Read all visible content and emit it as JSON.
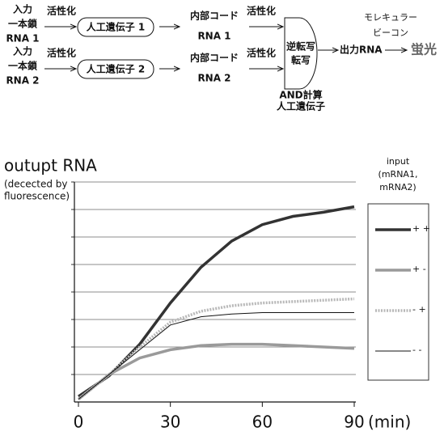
{
  "diagram": {
    "rows": [
      {
        "input": [
          "入力",
          "一本鎖",
          "RNA 1"
        ],
        "activate1": "活性化",
        "gene": "人工遺伝子 1",
        "code": [
          "内部コード",
          "RNA 1"
        ],
        "activate2": "活性化"
      },
      {
        "input": [
          "入力",
          "一本鎖",
          "RNA 2"
        ],
        "activate1": "活性化",
        "gene": "人工遺伝子 2",
        "code": [
          "内部コード",
          "RNA 2"
        ],
        "activate2": "活性化"
      }
    ],
    "gate": {
      "inner": [
        "逆転写",
        "転写"
      ],
      "caption": [
        "AND計算",
        "人工遺伝子"
      ]
    },
    "output": "出力RNA",
    "beacon": [
      "モレキュラー",
      "ビーコン"
    ],
    "result": "蛍光"
  },
  "chart_data": {
    "type": "line",
    "title": "outupt RNA",
    "subtitle": [
      "(decected by",
      "fluorescence)"
    ],
    "x_label": "(min)",
    "x": [
      0,
      10,
      20,
      30,
      40,
      50,
      60,
      70,
      80,
      90
    ],
    "xlim": [
      0,
      90
    ],
    "xticks": [
      0,
      30,
      60,
      90
    ],
    "ylim": [
      0,
      8
    ],
    "yticks": [
      1,
      2,
      3,
      4,
      5,
      6,
      7,
      8
    ],
    "grid": true,
    "legend_title": [
      "input",
      "(mRNA1,",
      "mRNA2)"
    ],
    "legend_position": "right",
    "series": [
      {
        "name": "+ +",
        "color": "#333333",
        "width": 3.5,
        "dash": "solid",
        "values": [
          0.2,
          0.95,
          2.1,
          3.6,
          4.9,
          5.85,
          6.45,
          6.75,
          6.9,
          7.1
        ]
      },
      {
        "name": "+ -",
        "color": "#9a9a9a",
        "width": 3.5,
        "dash": "solid",
        "values": [
          0.1,
          1.0,
          1.6,
          1.9,
          2.05,
          2.1,
          2.1,
          2.05,
          2.0,
          1.95
        ]
      },
      {
        "name": "- +",
        "color": "#b8b8b8",
        "width": 3.5,
        "dash": "dotted",
        "values": [
          0.1,
          1.0,
          2.0,
          2.9,
          3.3,
          3.5,
          3.6,
          3.65,
          3.7,
          3.75
        ]
      },
      {
        "name": "- -",
        "color": "#111111",
        "width": 1,
        "dash": "solid",
        "values": [
          0.1,
          1.0,
          1.9,
          2.8,
          3.1,
          3.2,
          3.25,
          3.25,
          3.25,
          3.25
        ]
      }
    ]
  }
}
